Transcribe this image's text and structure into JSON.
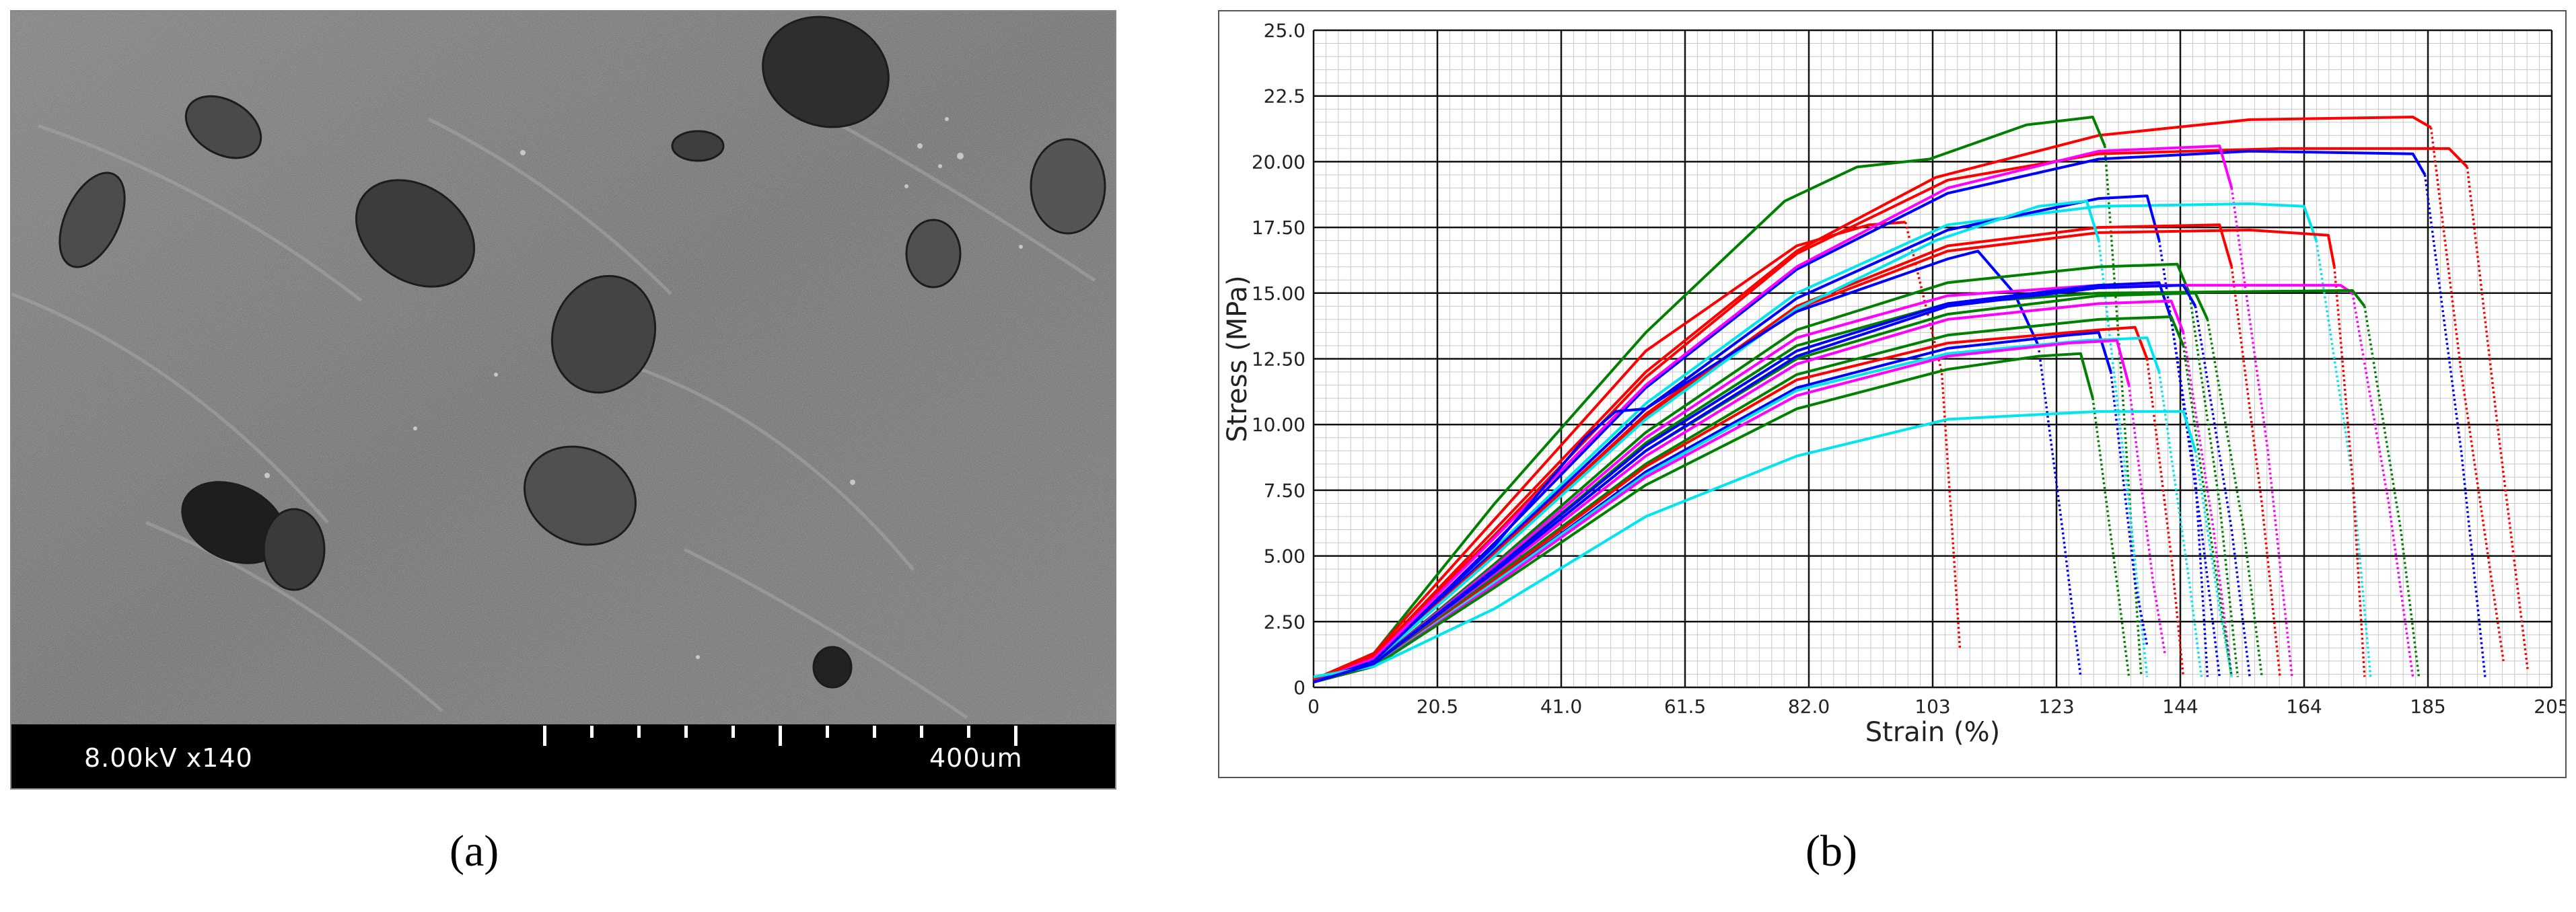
{
  "panel_a": {
    "left_text": "8.00kV x140",
    "right_text": "400um"
  },
  "captions": {
    "a": "(a)",
    "b": "(b)"
  },
  "chart_data": {
    "type": "line",
    "title": "",
    "xlabel": "Strain (%)",
    "ylabel": "Stress (MPa)",
    "xlim": [
      0,
      205
    ],
    "ylim": [
      0,
      25
    ],
    "x_ticks": [
      "0",
      "20.5",
      "41.0",
      "61.5",
      "82.0",
      "103",
      "123",
      "144",
      "164",
      "185",
      "205"
    ],
    "y_ticks": [
      "0",
      "2.50",
      "5.00",
      "7.50",
      "10.00",
      "12.50",
      "15.00",
      "17.50",
      "20.00",
      "22.5",
      "25.0"
    ],
    "grid": true,
    "series": [
      {
        "color": "#ff0000",
        "values": [
          [
            0,
            0.3
          ],
          [
            10,
            1.2
          ],
          [
            30,
            6.0
          ],
          [
            55,
            12.0
          ],
          [
            80,
            16.6
          ],
          [
            103,
            19.4
          ],
          [
            130,
            21.0
          ],
          [
            155,
            21.6
          ],
          [
            182,
            21.7
          ],
          [
            185,
            21.3
          ],
          [
            190,
            12
          ],
          [
            197,
            1
          ]
        ]
      },
      {
        "color": "#008000",
        "values": [
          [
            0,
            0.3
          ],
          [
            10,
            1.3
          ],
          [
            30,
            7.0
          ],
          [
            55,
            13.5
          ],
          [
            78,
            18.5
          ],
          [
            90,
            19.8
          ],
          [
            102,
            20.1
          ],
          [
            118,
            21.4
          ],
          [
            129,
            21.7
          ],
          [
            131,
            20.6
          ],
          [
            134,
            11
          ],
          [
            137,
            0.5
          ]
        ]
      },
      {
        "color": "#ff0000",
        "values": [
          [
            0,
            0.3
          ],
          [
            10,
            1.3
          ],
          [
            30,
            6.4
          ],
          [
            55,
            12.8
          ],
          [
            80,
            16.8
          ],
          [
            92,
            17.6
          ],
          [
            98,
            17.7
          ],
          [
            104,
            12
          ],
          [
            107,
            1.5
          ]
        ]
      },
      {
        "color": "#ff0000",
        "values": [
          [
            0,
            0.3
          ],
          [
            10,
            1.2
          ],
          [
            30,
            5.8
          ],
          [
            55,
            11.8
          ],
          [
            80,
            16.5
          ],
          [
            105,
            19.3
          ],
          [
            130,
            20.3
          ],
          [
            160,
            20.5
          ],
          [
            188,
            20.5
          ],
          [
            191,
            19.8
          ],
          [
            196,
            10
          ],
          [
            201,
            0.7
          ]
        ]
      },
      {
        "color": "#0000ff",
        "values": [
          [
            0,
            0.2
          ],
          [
            10,
            1.0
          ],
          [
            30,
            5.5
          ],
          [
            55,
            11.4
          ],
          [
            80,
            15.9
          ],
          [
            105,
            18.8
          ],
          [
            130,
            20.1
          ],
          [
            155,
            20.4
          ],
          [
            182,
            20.3
          ],
          [
            184,
            19.5
          ],
          [
            190,
            9
          ],
          [
            194,
            0.3
          ]
        ]
      },
      {
        "color": "#ff00ff",
        "values": [
          [
            0,
            0.2
          ],
          [
            10,
            1.1
          ],
          [
            30,
            5.7
          ],
          [
            55,
            11.5
          ],
          [
            80,
            16.0
          ],
          [
            105,
            19.0
          ],
          [
            130,
            20.4
          ],
          [
            150,
            20.6
          ],
          [
            152,
            19
          ],
          [
            158,
            9
          ],
          [
            162,
            0.4
          ]
        ]
      },
      {
        "color": "#00e5ee",
        "values": [
          [
            0,
            0.2
          ],
          [
            10,
            1.0
          ],
          [
            30,
            5.3
          ],
          [
            55,
            10.8
          ],
          [
            80,
            15.0
          ],
          [
            105,
            17.6
          ],
          [
            130,
            18.3
          ],
          [
            155,
            18.4
          ],
          [
            164,
            18.3
          ],
          [
            166,
            17
          ],
          [
            172,
            8
          ],
          [
            175,
            0.4
          ]
        ]
      },
      {
        "color": "#0000ff",
        "values": [
          [
            0,
            0.2
          ],
          [
            10,
            1.0
          ],
          [
            30,
            5.2
          ],
          [
            55,
            10.6
          ],
          [
            80,
            14.8
          ],
          [
            105,
            17.4
          ],
          [
            130,
            18.6
          ],
          [
            138,
            18.7
          ],
          [
            140,
            17
          ],
          [
            146,
            8
          ],
          [
            148,
            0.4
          ]
        ]
      },
      {
        "color": "#ff0000",
        "values": [
          [
            0,
            0.2
          ],
          [
            10,
            1.0
          ],
          [
            30,
            5.0
          ],
          [
            55,
            10.3
          ],
          [
            80,
            14.4
          ],
          [
            105,
            16.6
          ],
          [
            130,
            17.3
          ],
          [
            155,
            17.4
          ],
          [
            168,
            17.2
          ],
          [
            169,
            16
          ],
          [
            172,
            8
          ],
          [
            174,
            0.4
          ]
        ]
      },
      {
        "color": "#ff0000",
        "values": [
          [
            0,
            0.2
          ],
          [
            10,
            1.0
          ],
          [
            30,
            5.1
          ],
          [
            55,
            10.4
          ],
          [
            80,
            14.5
          ],
          [
            105,
            16.8
          ],
          [
            130,
            17.5
          ],
          [
            150,
            17.6
          ],
          [
            152,
            16
          ],
          [
            157,
            7
          ],
          [
            160,
            0.4
          ]
        ]
      },
      {
        "color": "#00e5ee",
        "values": [
          [
            0,
            0.2
          ],
          [
            10,
            1.0
          ],
          [
            30,
            5.0
          ],
          [
            55,
            10.2
          ],
          [
            80,
            14.4
          ],
          [
            103,
            17.0
          ],
          [
            120,
            18.3
          ],
          [
            128,
            18.5
          ],
          [
            130,
            17
          ],
          [
            135,
            7
          ],
          [
            138,
            0.4
          ]
        ]
      },
      {
        "color": "#0000ff",
        "values": [
          [
            0,
            0.2
          ],
          [
            10,
            1.0
          ],
          [
            30,
            5.4
          ],
          [
            45,
            9.5
          ],
          [
            50,
            10.5
          ],
          [
            55,
            10.6
          ],
          [
            80,
            14.3
          ],
          [
            105,
            16.3
          ],
          [
            110,
            16.6
          ],
          [
            116,
            15.0
          ],
          [
            120,
            13.0
          ],
          [
            124,
            6
          ],
          [
            127,
            0.4
          ]
        ]
      },
      {
        "color": "#008000",
        "values": [
          [
            0,
            0.2
          ],
          [
            10,
            0.9
          ],
          [
            30,
            4.7
          ],
          [
            55,
            9.7
          ],
          [
            80,
            13.6
          ],
          [
            105,
            15.4
          ],
          [
            130,
            16.0
          ],
          [
            143,
            16.1
          ],
          [
            145,
            15
          ],
          [
            150,
            7
          ],
          [
            153,
            0.4
          ]
        ]
      },
      {
        "color": "#ff00ff",
        "values": [
          [
            0,
            0.2
          ],
          [
            10,
            0.9
          ],
          [
            30,
            4.6
          ],
          [
            55,
            9.5
          ],
          [
            80,
            13.3
          ],
          [
            105,
            14.9
          ],
          [
            130,
            15.3
          ],
          [
            170,
            15.3
          ],
          [
            172,
            15
          ],
          [
            178,
            7
          ],
          [
            182,
            0.4
          ]
        ]
      },
      {
        "color": "#008000",
        "values": [
          [
            0,
            0.2
          ],
          [
            10,
            0.9
          ],
          [
            30,
            4.5
          ],
          [
            55,
            9.3
          ],
          [
            80,
            13.0
          ],
          [
            105,
            14.6
          ],
          [
            130,
            15.0
          ],
          [
            172,
            15.1
          ],
          [
            174,
            14.5
          ],
          [
            180,
            6
          ],
          [
            183,
            0.4
          ]
        ]
      },
      {
        "color": "#0000ff",
        "values": [
          [
            0,
            0.2
          ],
          [
            10,
            0.9
          ],
          [
            30,
            4.5
          ],
          [
            55,
            9.2
          ],
          [
            80,
            12.8
          ],
          [
            105,
            14.6
          ],
          [
            130,
            15.3
          ],
          [
            140,
            15.4
          ],
          [
            142,
            14
          ],
          [
            147,
            6
          ],
          [
            150,
            0.4
          ]
        ]
      },
      {
        "color": "#008000",
        "values": [
          [
            0,
            0.2
          ],
          [
            10,
            0.9
          ],
          [
            30,
            4.4
          ],
          [
            55,
            9.0
          ],
          [
            80,
            12.5
          ],
          [
            105,
            14.2
          ],
          [
            130,
            14.9
          ],
          [
            146,
            15.0
          ],
          [
            148,
            14
          ],
          [
            154,
            6
          ],
          [
            157,
            0.4
          ]
        ]
      },
      {
        "color": "#ff00ff",
        "values": [
          [
            0,
            0.2
          ],
          [
            10,
            0.9
          ],
          [
            30,
            4.3
          ],
          [
            55,
            8.8
          ],
          [
            80,
            12.3
          ],
          [
            105,
            14.0
          ],
          [
            130,
            14.6
          ],
          [
            142,
            14.7
          ],
          [
            144,
            13.5
          ],
          [
            149,
            6
          ],
          [
            152,
            0.4
          ]
        ]
      },
      {
        "color": "#008000",
        "values": [
          [
            0,
            0.2
          ],
          [
            10,
            0.8
          ],
          [
            30,
            4.2
          ],
          [
            55,
            8.5
          ],
          [
            80,
            11.9
          ],
          [
            105,
            13.4
          ],
          [
            130,
            14.0
          ],
          [
            142,
            14.1
          ],
          [
            144,
            13
          ],
          [
            149,
            5
          ],
          [
            152,
            0.4
          ]
        ]
      },
      {
        "color": "#ff0000",
        "values": [
          [
            0,
            0.2
          ],
          [
            10,
            0.8
          ],
          [
            30,
            4.1
          ],
          [
            55,
            8.4
          ],
          [
            80,
            11.7
          ],
          [
            105,
            13.1
          ],
          [
            130,
            13.6
          ],
          [
            136,
            13.7
          ],
          [
            138,
            12.5
          ],
          [
            142,
            5
          ],
          [
            144,
            0.4
          ]
        ]
      },
      {
        "color": "#0000ff",
        "values": [
          [
            0,
            0.2
          ],
          [
            10,
            0.8
          ],
          [
            30,
            4.0
          ],
          [
            55,
            8.2
          ],
          [
            80,
            11.4
          ],
          [
            105,
            12.9
          ],
          [
            125,
            13.4
          ],
          [
            130,
            13.5
          ],
          [
            132,
            12
          ],
          [
            136,
            4
          ],
          [
            138,
            1.6
          ]
        ]
      },
      {
        "color": "#00e5ee",
        "values": [
          [
            0,
            0.2
          ],
          [
            10,
            0.8
          ],
          [
            30,
            4.0
          ],
          [
            55,
            8.1
          ],
          [
            80,
            11.3
          ],
          [
            105,
            12.7
          ],
          [
            128,
            13.2
          ],
          [
            138,
            13.3
          ],
          [
            140,
            12
          ],
          [
            145,
            4
          ],
          [
            147,
            0.4
          ]
        ]
      },
      {
        "color": "#ff00ff",
        "values": [
          [
            0,
            0.2
          ],
          [
            10,
            0.8
          ],
          [
            30,
            3.9
          ],
          [
            55,
            8.0
          ],
          [
            80,
            11.1
          ],
          [
            105,
            12.6
          ],
          [
            125,
            13.1
          ],
          [
            133,
            13.2
          ],
          [
            135,
            11.5
          ],
          [
            139,
            4
          ],
          [
            141,
            1.2
          ]
        ]
      },
      {
        "color": "#008000",
        "values": [
          [
            0,
            0.2
          ],
          [
            10,
            0.8
          ],
          [
            30,
            3.8
          ],
          [
            55,
            7.7
          ],
          [
            80,
            10.6
          ],
          [
            105,
            12.1
          ],
          [
            120,
            12.6
          ],
          [
            127,
            12.7
          ],
          [
            129,
            11
          ],
          [
            133,
            4
          ],
          [
            135,
            0.4
          ]
        ]
      },
      {
        "color": "#00e5ee",
        "values": [
          [
            0,
            0.4
          ],
          [
            10,
            0.8
          ],
          [
            30,
            3.0
          ],
          [
            55,
            6.5
          ],
          [
            80,
            8.8
          ],
          [
            105,
            10.2
          ],
          [
            130,
            10.5
          ],
          [
            144,
            10.5
          ],
          [
            146,
            9
          ],
          [
            150,
            3
          ],
          [
            152,
            0.4
          ]
        ]
      },
      {
        "color": "#0000ff",
        "values": [
          [
            0,
            0.2
          ],
          [
            10,
            0.9
          ],
          [
            30,
            4.4
          ],
          [
            55,
            9.0
          ],
          [
            80,
            12.6
          ],
          [
            105,
            14.5
          ],
          [
            130,
            15.2
          ],
          [
            144,
            15.3
          ],
          [
            146,
            14.5
          ],
          [
            152,
            6
          ],
          [
            155,
            0.4
          ]
        ]
      }
    ]
  }
}
